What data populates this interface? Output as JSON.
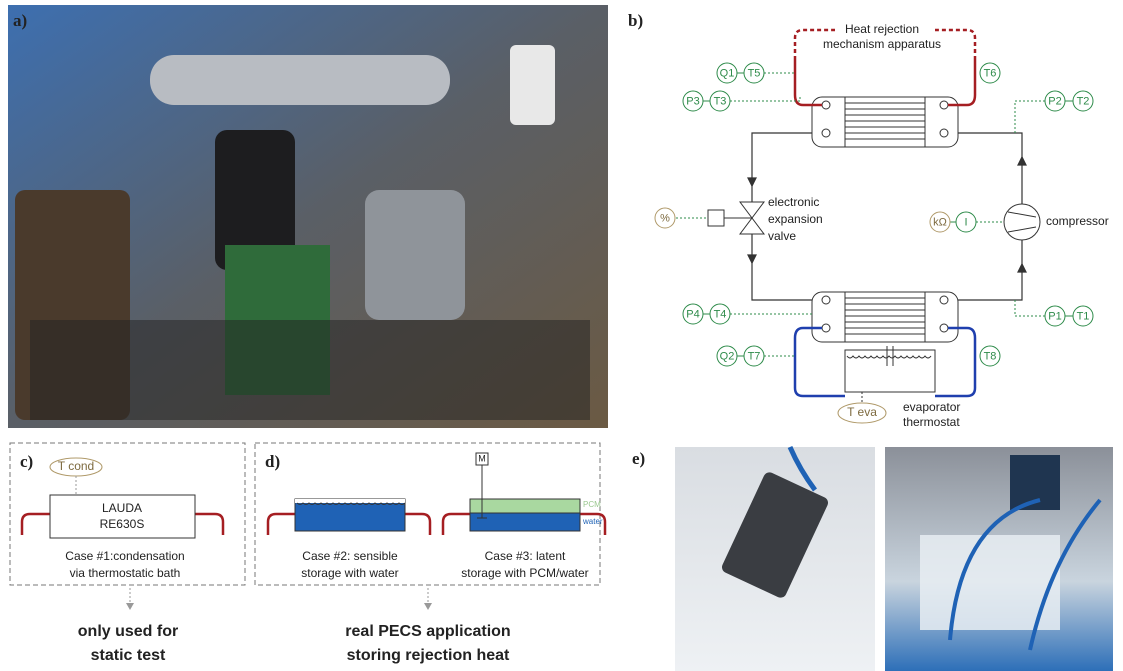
{
  "labels": [
    "a)",
    "b)",
    "c)",
    "d)",
    "e)"
  ],
  "b": {
    "heat_rejection": [
      "Heat rejection",
      "mechanism apparatus"
    ],
    "sensors": [
      "Q1",
      "T5",
      "T6",
      "P3",
      "T3",
      "P2",
      "T2",
      "%",
      "kΩ",
      "I",
      "P4",
      "T4",
      "P1",
      "T1",
      "Q2",
      "T7",
      "T8"
    ],
    "expansion_valve": [
      "electronic",
      "expansion",
      "valve"
    ],
    "compressor": "compressor",
    "t_eva": "T eva",
    "evaporator": [
      "evaporator",
      "thermostat"
    ]
  },
  "c": {
    "sensor": "T cond",
    "device": [
      "LAUDA",
      "RE630S"
    ],
    "caption": [
      "Case #1:condensation",
      "via thermostatic bath"
    ],
    "note": [
      "only used for",
      "static test"
    ]
  },
  "d": {
    "case2": [
      "Case #2: sensible",
      "storage with water"
    ],
    "motor": "M",
    "pcm": "PCM",
    "water": "water",
    "case3": [
      "Case #3: latent",
      "storage with PCM/water"
    ],
    "note": [
      "real PECS application",
      "storing rejection heat"
    ]
  }
}
